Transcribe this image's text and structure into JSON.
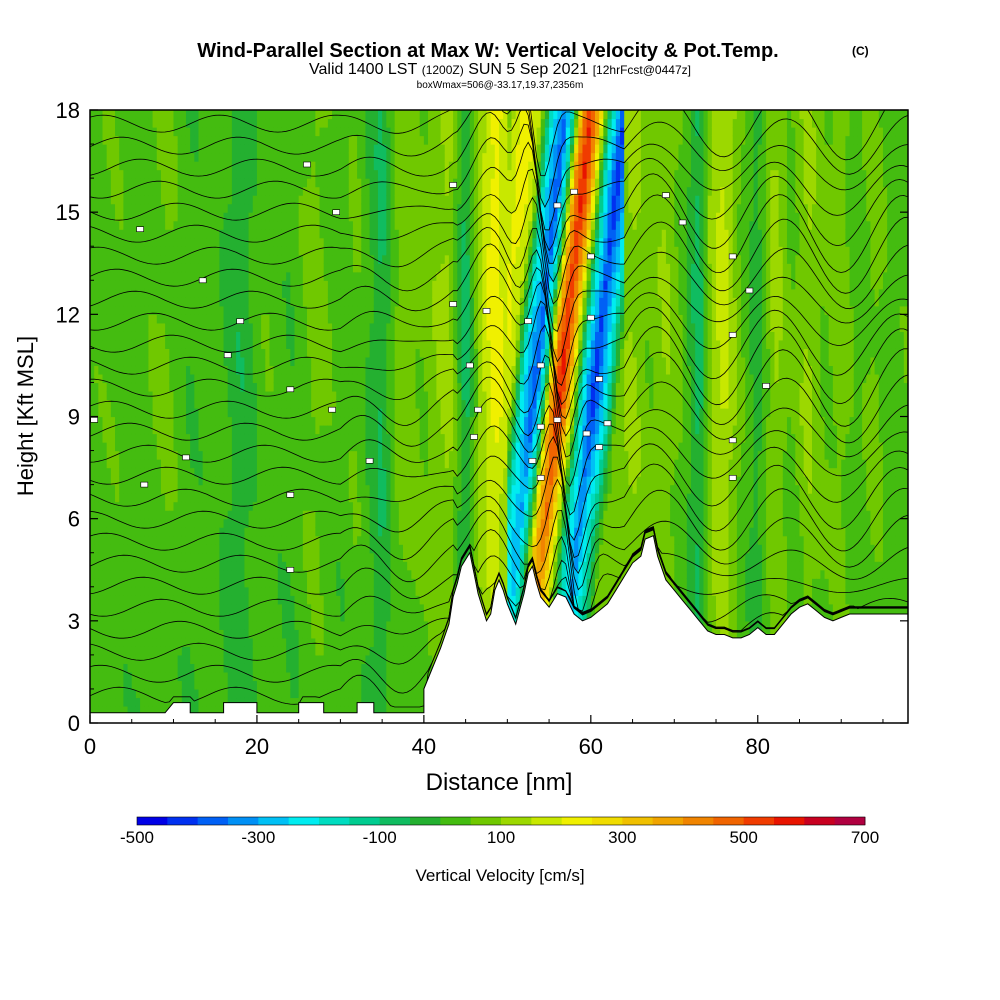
{
  "chart_data": {
    "type": "heatmap",
    "title": "Wind-Parallel Section at Max W: Vertical Velocity & Pot.Temp.",
    "title_mark": "(C)",
    "subtitle": {
      "valid": "Valid 1400 LST",
      "utc": "(1200Z)",
      "date": "SUN 5 Sep 2021",
      "forecast": "[12hrFcst@0447z]"
    },
    "box_info": "boxWmax=506@-33.17,19.37,2356m",
    "xlabel": "Distance [nm]",
    "ylabel": "Height [Kft MSL]",
    "xlim": [
      0,
      98
    ],
    "ylim": [
      0,
      18
    ],
    "x_ticks": [
      "0",
      "20",
      "40",
      "60",
      "80"
    ],
    "x_tick_values": [
      0,
      20,
      40,
      60,
      80
    ],
    "y_ticks": [
      "0",
      "3",
      "6",
      "9",
      "12",
      "15",
      "18"
    ],
    "y_tick_values": [
      0,
      3,
      6,
      9,
      12,
      15,
      18
    ],
    "colorbar": {
      "label": "Vertical Velocity [cm/s]",
      "min": -500,
      "max": 700,
      "step": 50,
      "tick_labels": [
        "-500",
        "-300",
        "-100",
        "100",
        "300",
        "500",
        "700"
      ],
      "tick_values": [
        -500,
        -300,
        -100,
        100,
        300,
        500,
        700
      ],
      "colors": [
        "#0000e6",
        "#0030f0",
        "#0060f5",
        "#0090f5",
        "#00c0f5",
        "#00ecf0",
        "#00dcc0",
        "#00cc90",
        "#10bc60",
        "#24b030",
        "#44bc10",
        "#70c800",
        "#9cd800",
        "#c8e800",
        "#f0f000",
        "#f0dc00",
        "#f0c000",
        "#f0a400",
        "#f08400",
        "#f06400",
        "#f03c00",
        "#e81400",
        "#c80020",
        "#b00040"
      ]
    },
    "velocity_columns": [
      [
        0,
        30
      ],
      [
        3,
        40
      ],
      [
        6,
        20
      ],
      [
        9,
        60
      ],
      [
        12,
        10
      ],
      [
        15,
        30
      ],
      [
        18,
        -40
      ],
      [
        21,
        40
      ],
      [
        24,
        10
      ],
      [
        27,
        70
      ],
      [
        30,
        20
      ],
      [
        32,
        50
      ],
      [
        35,
        -60
      ],
      [
        37,
        80
      ],
      [
        40,
        60
      ],
      [
        43,
        120
      ],
      [
        45,
        -80
      ],
      [
        47,
        150
      ],
      [
        48.5,
        230
      ],
      [
        50,
        160
      ],
      [
        51.5,
        -220
      ],
      [
        53,
        -380
      ],
      [
        54,
        -120
      ],
      [
        55,
        380
      ],
      [
        56,
        560
      ],
      [
        57,
        360
      ],
      [
        58.5,
        -150
      ],
      [
        60,
        -420
      ],
      [
        61.5,
        -220
      ],
      [
        63,
        70
      ],
      [
        65,
        110
      ],
      [
        67,
        60
      ],
      [
        69,
        100
      ],
      [
        71,
        40
      ],
      [
        73,
        -80
      ],
      [
        74.5,
        120
      ],
      [
        76,
        170
      ],
      [
        78,
        50
      ],
      [
        80,
        -30
      ],
      [
        82,
        120
      ],
      [
        84,
        40
      ],
      [
        86,
        110
      ],
      [
        88,
        50
      ],
      [
        90,
        80
      ],
      [
        92,
        20
      ],
      [
        94,
        70
      ],
      [
        96,
        20
      ],
      [
        98,
        40
      ]
    ],
    "terrain": [
      [
        0,
        0.3
      ],
      [
        9,
        0.3
      ],
      [
        10,
        0.6
      ],
      [
        12,
        0.6
      ],
      [
        12,
        0.3
      ],
      [
        16,
        0.3
      ],
      [
        16,
        0.6
      ],
      [
        20,
        0.6
      ],
      [
        20,
        0.3
      ],
      [
        25,
        0.3
      ],
      [
        25,
        0.6
      ],
      [
        28,
        0.6
      ],
      [
        28,
        0.3
      ],
      [
        32,
        0.3
      ],
      [
        32,
        0.6
      ],
      [
        34,
        0.6
      ],
      [
        34,
        0.3
      ],
      [
        40,
        0.3
      ],
      [
        40,
        1.0
      ],
      [
        41,
        1.6
      ],
      [
        42,
        2.2
      ],
      [
        43,
        2.9
      ],
      [
        43.5,
        3.7
      ],
      [
        44,
        4.1
      ],
      [
        44.5,
        4.6
      ],
      [
        45,
        4.8
      ],
      [
        45.5,
        5.0
      ],
      [
        46,
        4.4
      ],
      [
        46.5,
        3.8
      ],
      [
        47,
        3.4
      ],
      [
        47.5,
        3.0
      ],
      [
        48,
        3.2
      ],
      [
        48.5,
        3.9
      ],
      [
        49,
        4.2
      ],
      [
        49.5,
        3.9
      ],
      [
        50,
        3.5
      ],
      [
        50.5,
        3.2
      ],
      [
        51,
        2.9
      ],
      [
        52,
        3.8
      ],
      [
        52.5,
        4.4
      ],
      [
        53,
        4.6
      ],
      [
        53.5,
        4.1
      ],
      [
        54,
        3.7
      ],
      [
        55,
        3.4
      ],
      [
        55.5,
        3.6
      ],
      [
        56,
        3.8
      ],
      [
        57,
        3.7
      ],
      [
        58,
        3.2
      ],
      [
        59,
        3.0
      ],
      [
        60,
        3.1
      ],
      [
        61,
        3.3
      ],
      [
        62,
        3.5
      ],
      [
        63,
        3.9
      ],
      [
        64,
        4.3
      ],
      [
        65,
        4.7
      ],
      [
        66,
        4.9
      ],
      [
        66.5,
        5.4
      ],
      [
        67.5,
        5.5
      ],
      [
        68,
        4.9
      ],
      [
        69,
        4.2
      ],
      [
        70,
        3.9
      ],
      [
        71,
        3.6
      ],
      [
        72,
        3.3
      ],
      [
        73,
        3.0
      ],
      [
        74,
        2.7
      ],
      [
        75,
        2.6
      ],
      [
        76,
        2.6
      ],
      [
        77,
        2.5
      ],
      [
        78,
        2.5
      ],
      [
        79,
        2.6
      ],
      [
        80,
        2.8
      ],
      [
        81,
        2.6
      ],
      [
        82,
        2.6
      ],
      [
        83,
        2.9
      ],
      [
        84,
        3.2
      ],
      [
        85,
        3.4
      ],
      [
        86,
        3.5
      ],
      [
        87,
        3.3
      ],
      [
        88,
        3.1
      ],
      [
        89,
        3.0
      ],
      [
        90,
        3.1
      ],
      [
        91,
        3.2
      ],
      [
        92,
        3.2
      ],
      [
        93,
        3.2
      ],
      [
        94,
        3.2
      ],
      [
        95,
        3.2
      ],
      [
        96,
        3.2
      ],
      [
        98,
        3.2
      ]
    ],
    "theta_levels": 27,
    "theta_label_points": [
      [
        6,
        14.5
      ],
      [
        13.5,
        13.0
      ],
      [
        18,
        11.8
      ],
      [
        16.5,
        10.8
      ],
      [
        24,
        9.8
      ],
      [
        29,
        9.2
      ],
      [
        0.5,
        8.9
      ],
      [
        11.5,
        7.8
      ],
      [
        6.5,
        7.0
      ],
      [
        24,
        6.7
      ],
      [
        24,
        4.5
      ],
      [
        26,
        16.4
      ],
      [
        29.5,
        15.0
      ],
      [
        43.5,
        15.8
      ],
      [
        47.5,
        12.1
      ],
      [
        43.5,
        12.3
      ],
      [
        45.5,
        10.5
      ],
      [
        46.5,
        9.2
      ],
      [
        46,
        8.4
      ],
      [
        33.5,
        7.7
      ],
      [
        52.5,
        11.8
      ],
      [
        54,
        10.5
      ],
      [
        54,
        8.7
      ],
      [
        53,
        7.7
      ],
      [
        54,
        7.2
      ],
      [
        56,
        15.2
      ],
      [
        58,
        15.6
      ],
      [
        60,
        13.7
      ],
      [
        60,
        11.9
      ],
      [
        61,
        10.1
      ],
      [
        61,
        8.1
      ],
      [
        59.5,
        8.5
      ],
      [
        56,
        8.9
      ],
      [
        62,
        8.8
      ],
      [
        69,
        15.5
      ],
      [
        71,
        14.7
      ],
      [
        77,
        13.7
      ],
      [
        79,
        12.7
      ],
      [
        77,
        11.4
      ],
      [
        81,
        9.9
      ],
      [
        77,
        8.3
      ],
      [
        77,
        7.2
      ]
    ]
  }
}
